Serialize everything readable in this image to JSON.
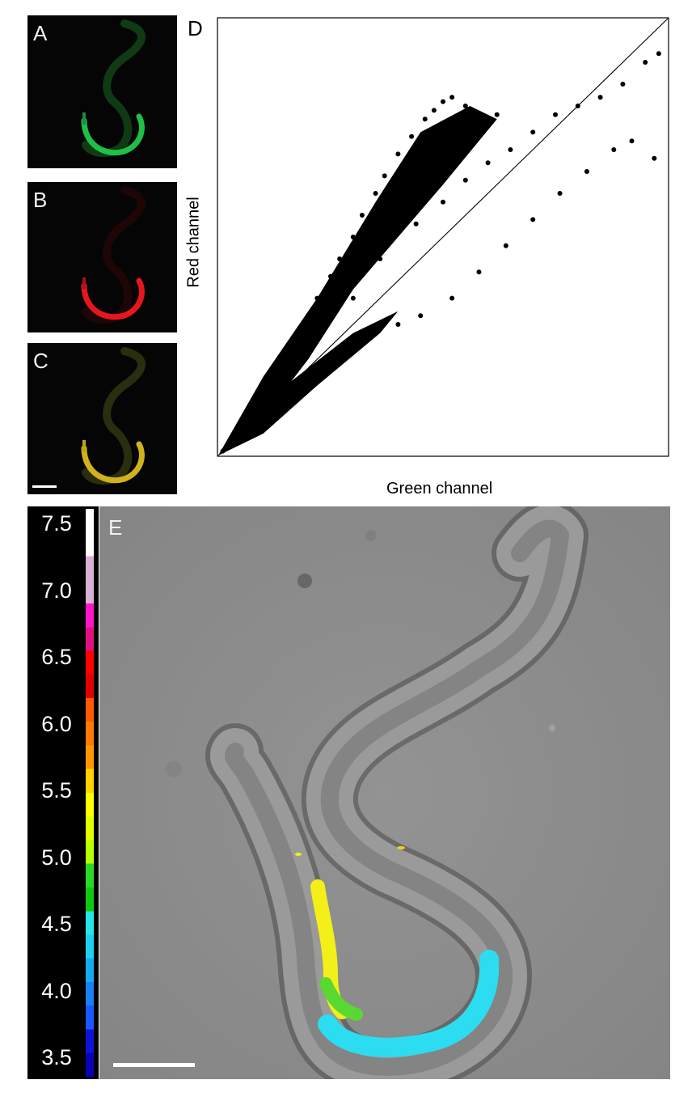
{
  "panels": {
    "a": {
      "label": "A",
      "channel": "green",
      "color": "#22c84a"
    },
    "b": {
      "label": "B",
      "channel": "red",
      "color": "#e8161c"
    },
    "c": {
      "label": "C",
      "channel": "merge",
      "color": "#d2b21c"
    },
    "d": {
      "label": "D"
    },
    "e": {
      "label": "E"
    }
  },
  "chart_data": {
    "type": "scatter",
    "title": "",
    "xlabel": "Green channel",
    "ylabel": "Red channel",
    "xlim": [
      0,
      1
    ],
    "ylim": [
      0,
      1
    ],
    "ticks_shown": false,
    "grid": false,
    "reference_line": {
      "type": "identity",
      "x": [
        0,
        1
      ],
      "y": [
        0,
        1
      ]
    },
    "point_color": "#000000",
    "series": [
      {
        "points": [
          [
            0.01,
            0.01
          ],
          [
            0.04,
            0.05
          ],
          [
            0.07,
            0.09
          ],
          [
            0.1,
            0.14
          ],
          [
            0.12,
            0.18
          ],
          [
            0.15,
            0.22
          ],
          [
            0.18,
            0.27
          ],
          [
            0.2,
            0.32
          ],
          [
            0.22,
            0.36
          ],
          [
            0.25,
            0.41
          ],
          [
            0.27,
            0.45
          ],
          [
            0.3,
            0.5
          ],
          [
            0.32,
            0.55
          ],
          [
            0.35,
            0.6
          ],
          [
            0.37,
            0.64
          ],
          [
            0.4,
            0.69
          ],
          [
            0.43,
            0.73
          ],
          [
            0.46,
            0.77
          ],
          [
            0.48,
            0.79
          ],
          [
            0.5,
            0.81
          ],
          [
            0.52,
            0.82
          ],
          [
            0.55,
            0.8
          ],
          [
            0.58,
            0.78
          ],
          [
            0.6,
            0.76
          ],
          [
            0.62,
            0.78
          ],
          [
            0.28,
            0.43
          ],
          [
            0.33,
            0.49
          ],
          [
            0.38,
            0.55
          ],
          [
            0.42,
            0.6
          ],
          [
            0.45,
            0.65
          ],
          [
            0.24,
            0.3
          ],
          [
            0.3,
            0.36
          ],
          [
            0.36,
            0.45
          ],
          [
            0.44,
            0.53
          ],
          [
            0.5,
            0.58
          ],
          [
            0.55,
            0.63
          ],
          [
            0.6,
            0.67
          ],
          [
            0.65,
            0.7
          ],
          [
            0.7,
            0.74
          ],
          [
            0.75,
            0.78
          ],
          [
            0.8,
            0.8
          ],
          [
            0.85,
            0.82
          ],
          [
            0.9,
            0.85
          ],
          [
            0.95,
            0.9
          ],
          [
            0.98,
            0.92
          ],
          [
            0.4,
            0.3
          ],
          [
            0.45,
            0.32
          ],
          [
            0.52,
            0.36
          ],
          [
            0.58,
            0.42
          ],
          [
            0.64,
            0.48
          ],
          [
            0.7,
            0.54
          ],
          [
            0.76,
            0.6
          ],
          [
            0.82,
            0.65
          ],
          [
            0.88,
            0.7
          ],
          [
            0.92,
            0.72
          ],
          [
            0.97,
            0.68
          ]
        ]
      }
    ]
  },
  "colorbar": {
    "ticks": [
      "7.5",
      "7.0",
      "6.5",
      "6.0",
      "5.5",
      "5.0",
      "4.5",
      "4.0",
      "3.5"
    ],
    "colors": [
      "#ffffff",
      "#ffffff",
      "#d8b0d6",
      "#d8b0d6",
      "#ff14c8",
      "#e01080",
      "#ff0000",
      "#e00000",
      "#ff5a00",
      "#ff7a00",
      "#ff9600",
      "#ffd200",
      "#ffff00",
      "#e2ff00",
      "#b8ff00",
      "#2ad82a",
      "#11c811",
      "#25e5e5",
      "#1ed0f0",
      "#15aaf0",
      "#1a7ef5",
      "#1a58ff",
      "#0d14d8",
      "#0a00b4"
    ]
  },
  "overlay": {
    "worm_body": "#8a8a8a",
    "background": "#8c8c8c",
    "signal_colors": [
      "#2cdcf0",
      "#f2f018",
      "#58d830"
    ]
  }
}
